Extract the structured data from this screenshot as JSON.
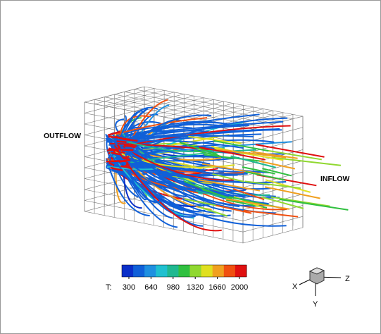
{
  "labels": {
    "outflow": "OUTFLOW",
    "inflow": "INFLOW"
  },
  "colorbar": {
    "label": "T:",
    "ticks": [
      300,
      640,
      980,
      1320,
      1660,
      2000
    ],
    "clim": [
      300,
      2000
    ],
    "colors": [
      "#0a2fc8",
      "#1060d8",
      "#1f90e0",
      "#20c0d0",
      "#20b890",
      "#30c040",
      "#90d830",
      "#e0e020",
      "#f0a020",
      "#f05010",
      "#e01010"
    ]
  },
  "axes": {
    "x": "X",
    "y": "Y",
    "z": "Z"
  }
}
